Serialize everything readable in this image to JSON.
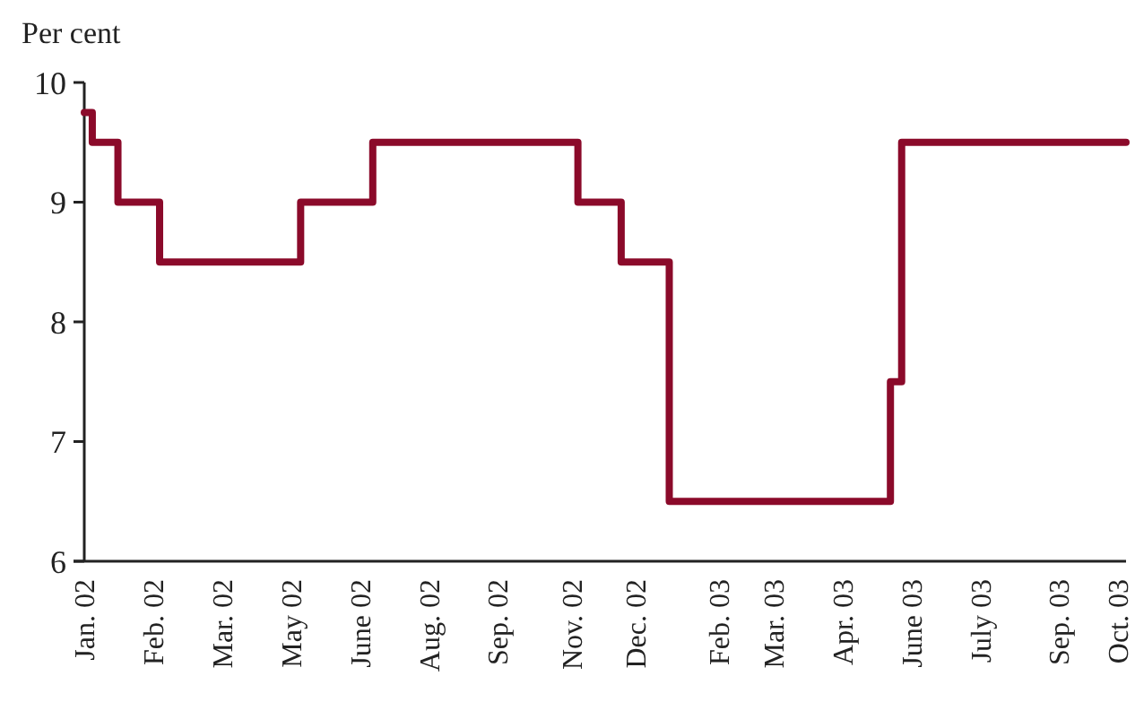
{
  "chart_data": {
    "type": "step",
    "ylabel": "Per cent",
    "x": [
      "2002-01-01",
      "2002-01-06",
      "2002-01-22",
      "2002-02-17",
      "2002-05-16",
      "2002-06-30",
      "2002-11-05",
      "2002-12-02",
      "2003-01-01",
      "2003-05-19",
      "2003-05-26",
      "2003-10-13"
    ],
    "series": [
      {
        "color": "#8b0a2a",
        "values": [
          9.75,
          9.5,
          9.0,
          8.5,
          9.0,
          9.5,
          9.0,
          8.5,
          6.5,
          7.5,
          9.5,
          9.5
        ]
      }
    ],
    "xlim": [
      "2002-01-01",
      "2003-10-13"
    ],
    "xticks": [
      {
        "value": "2002-01-01",
        "label": "Jan. 02"
      },
      {
        "value": "2002-02-13",
        "label": "Feb. 02"
      },
      {
        "value": "2002-03-28",
        "label": "Mar. 02"
      },
      {
        "value": "2002-05-10",
        "label": "May 02"
      },
      {
        "value": "2002-06-22",
        "label": "June 02"
      },
      {
        "value": "2002-08-04",
        "label": "Aug. 02"
      },
      {
        "value": "2002-09-16",
        "label": "Sep. 02"
      },
      {
        "value": "2002-11-01",
        "label": "Nov. 02"
      },
      {
        "value": "2002-12-11",
        "label": "Dec. 02"
      },
      {
        "value": "2003-02-01",
        "label": "Feb. 03"
      },
      {
        "value": "2003-03-07",
        "label": "Mar. 03"
      },
      {
        "value": "2003-04-19",
        "label": "Apr. 03"
      },
      {
        "value": "2003-06-01",
        "label": "June 03"
      },
      {
        "value": "2003-07-14",
        "label": "July 03"
      },
      {
        "value": "2003-09-01",
        "label": "Sep. 03"
      },
      {
        "value": "2003-10-08",
        "label": "Oct. 03"
      }
    ],
    "ylim": [
      6,
      10
    ],
    "yticks": [
      6,
      7,
      8,
      9,
      10
    ],
    "grid": false,
    "line_style": "solid",
    "marker": "none"
  }
}
